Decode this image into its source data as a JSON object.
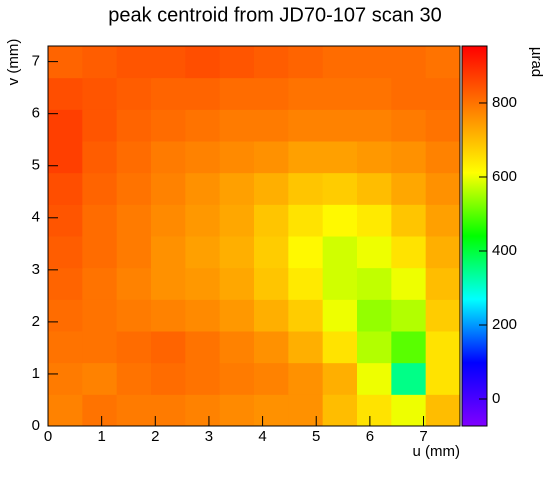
{
  "chart_data": {
    "type": "heatmap",
    "title": "peak centroid from JD70-107 scan 30",
    "x_label": "u (mm)",
    "y_label": "v (mm)",
    "z_label": "µrad",
    "xlim": [
      0,
      7.68
    ],
    "ylim": [
      0,
      7.3
    ],
    "zlim": [
      -73,
      954
    ],
    "xticks": [
      0,
      1,
      2,
      3,
      4,
      5,
      6,
      7
    ],
    "yticks": [
      0,
      1,
      2,
      3,
      4,
      5,
      6,
      7
    ],
    "zticks": [
      0,
      200,
      400,
      600,
      800
    ],
    "xbins": [
      0,
      0.64,
      1.28,
      1.92,
      2.56,
      3.2,
      3.84,
      4.48,
      5.12,
      5.76,
      6.4,
      7.04,
      7.68
    ],
    "ybins": [
      0,
      0.6083,
      1.2167,
      1.825,
      2.4333,
      3.0417,
      3.65,
      4.2583,
      4.8667,
      5.475,
      6.0833,
      6.6917,
      7.3
    ],
    "colormap": [
      "#8000ff",
      "#0000ff",
      "#00ffff",
      "#00ff00",
      "#ffff00",
      "#ff8000",
      "#ff0000"
    ],
    "z": [
      [
        780,
        800,
        790,
        790,
        780,
        770,
        760,
        760,
        700,
        650,
        600,
        700
      ],
      [
        790,
        780,
        800,
        810,
        800,
        790,
        780,
        760,
        720,
        600,
        350,
        650
      ],
      [
        800,
        800,
        810,
        820,
        800,
        780,
        760,
        720,
        650,
        560,
        500,
        650
      ],
      [
        810,
        800,
        790,
        780,
        770,
        750,
        720,
        680,
        600,
        540,
        560,
        680
      ],
      [
        820,
        800,
        780,
        760,
        750,
        730,
        690,
        640,
        580,
        570,
        600,
        700
      ],
      [
        830,
        810,
        790,
        760,
        740,
        720,
        680,
        620,
        580,
        600,
        650,
        720
      ],
      [
        840,
        810,
        790,
        770,
        750,
        730,
        690,
        650,
        620,
        640,
        690,
        740
      ],
      [
        850,
        820,
        800,
        780,
        760,
        740,
        720,
        690,
        680,
        700,
        730,
        760
      ],
      [
        870,
        830,
        810,
        790,
        780,
        770,
        760,
        740,
        740,
        750,
        760,
        780
      ],
      [
        870,
        840,
        820,
        810,
        800,
        790,
        790,
        780,
        780,
        780,
        790,
        800
      ],
      [
        850,
        840,
        830,
        820,
        820,
        810,
        810,
        800,
        800,
        800,
        810,
        810
      ],
      [
        820,
        830,
        840,
        840,
        850,
        840,
        830,
        820,
        810,
        810,
        810,
        800
      ]
    ]
  }
}
